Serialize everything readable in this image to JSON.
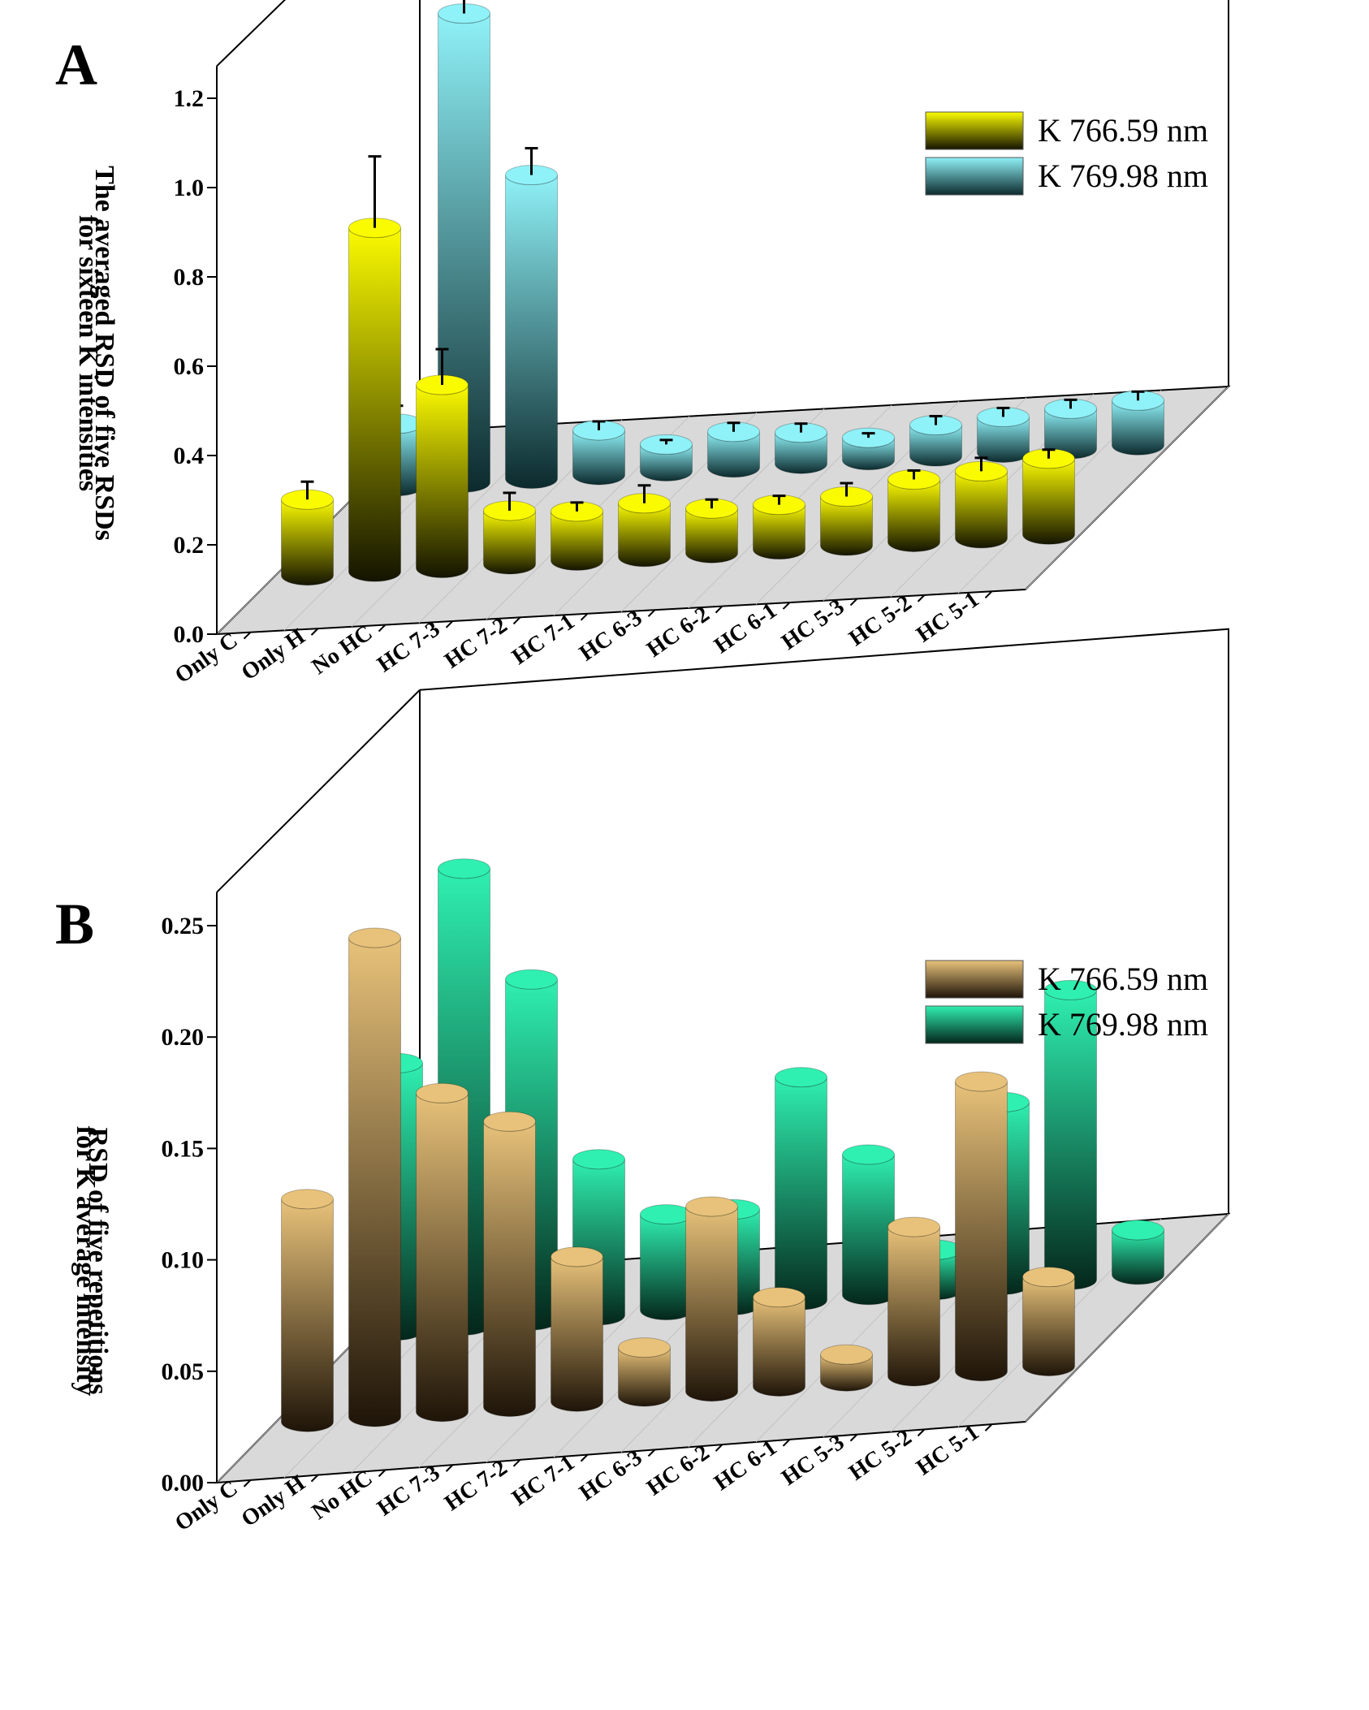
{
  "panels": [
    {
      "label": "A",
      "chart_data": {
        "type": "bar",
        "subtype": "3d-cylinder-grouped",
        "ylabel_line1": "The averaged RSD of five RSDs",
        "ylabel_line2": "for sixteen K intensities",
        "ylim": [
          0,
          1.2
        ],
        "yticks": [
          "0.0",
          "0.2",
          "0.4",
          "0.6",
          "0.8",
          "1.0",
          "1.2"
        ],
        "grid": true,
        "legend_position": "top-right",
        "categories": [
          "Only C",
          "Only H",
          "No HC",
          "HC 7-3",
          "HC 7-2",
          "HC 7-1",
          "HC 6-3",
          "HC 6-2",
          "HC 6-1",
          "HC 5-3",
          "HC 5-2",
          "HC 5-1"
        ],
        "series": [
          {
            "name": "K 766.59 nm",
            "colorTop": "#fbfb00",
            "colorBottom": "#141400",
            "values": [
              0.17,
              0.77,
              0.41,
              0.12,
              0.11,
              0.12,
              0.1,
              0.1,
              0.11,
              0.14,
              0.15,
              0.17
            ],
            "errors": [
              0.04,
              0.16,
              0.08,
              0.04,
              0.02,
              0.04,
              0.02,
              0.02,
              0.03,
              0.02,
              0.03,
              0.02
            ]
          },
          {
            "name": "K 769.98 nm",
            "colorTop": "#8ff2f8",
            "colorBottom": "#0c2a2d",
            "values": [
              0.14,
              1.05,
              0.68,
              0.1,
              0.06,
              0.08,
              0.07,
              0.05,
              0.07,
              0.08,
              0.09,
              0.1
            ],
            "errors": [
              0.04,
              0.17,
              0.06,
              0.02,
              0.01,
              0.02,
              0.02,
              0.01,
              0.02,
              0.02,
              0.02,
              0.02
            ]
          }
        ]
      }
    },
    {
      "label": "B",
      "chart_data": {
        "type": "bar",
        "subtype": "3d-cylinder-grouped",
        "ylabel_line1": "RSD of five repetitions",
        "ylabel_line2": "for K average intensity",
        "ylim": [
          0,
          0.25
        ],
        "yticks": [
          "0.00",
          "0.05",
          "0.10",
          "0.15",
          "0.20",
          "0.25"
        ],
        "grid": true,
        "legend_position": "top-right",
        "categories": [
          "Only C",
          "Only H",
          "No HC",
          "HC 7-3",
          "HC 7-2",
          "HC 7-1",
          "HC 6-3",
          "HC 6-2",
          "HC 6-1",
          "HC 5-3",
          "HC 5-2",
          "HC 5-1"
        ],
        "series": [
          {
            "name": "K 766.59 nm",
            "colorTop": "#e8c27a",
            "colorBottom": "#1e1408",
            "values": [
              0.1,
              0.215,
              0.143,
              0.128,
              0.065,
              0.022,
              0.083,
              0.04,
              0.012,
              0.067,
              0.13,
              0.04
            ]
          },
          {
            "name": "K 769.98 nm",
            "colorTop": "#2ff0b0",
            "colorBottom": "#04261b",
            "values": [
              0.12,
              0.205,
              0.153,
              0.07,
              0.043,
              0.043,
              0.1,
              0.063,
              0.018,
              0.082,
              0.13,
              0.02
            ]
          }
        ]
      }
    }
  ]
}
